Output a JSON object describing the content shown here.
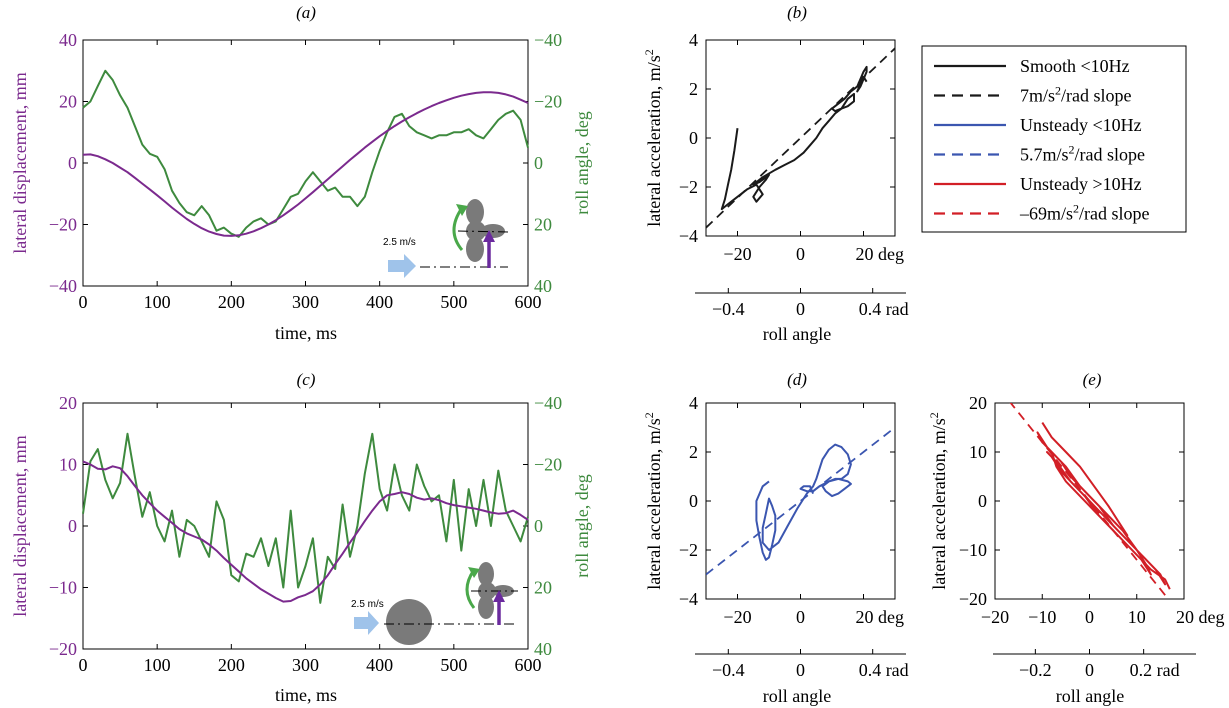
{
  "colors": {
    "displacement": "#7b2a8e",
    "roll": "#3e8a3e",
    "smooth": "#1a1a1a",
    "unsteady_low": "#3b56b0",
    "unsteady_high": "#d21f26",
    "arrow": "#9fc3ea",
    "body": "#7a7a7a"
  },
  "panels": {
    "a": {
      "label": "(a)",
      "inset_speed": "2.5 m/s"
    },
    "b": {
      "label": "(b)"
    },
    "c": {
      "label": "(c)",
      "inset_speed": "2.5 m/s"
    },
    "d": {
      "label": "(d)"
    },
    "e": {
      "label": "(e)"
    }
  },
  "axes": {
    "time_label": "time, ms",
    "disp_label": "lateral displacement, mm",
    "roll_label": "roll angle, deg",
    "accel_label": "lateral acceleration, m/s",
    "accel_sup": "2",
    "roll_angle_label": "roll angle"
  },
  "legend": [
    {
      "label": "Smooth <10Hz",
      "sup": "",
      "suffix": "",
      "style": "solid",
      "color": "#1a1a1a"
    },
    {
      "label": "7m/s",
      "sup": "2",
      "suffix": "/rad slope",
      "style": "dashed",
      "color": "#1a1a1a"
    },
    {
      "label": "Unsteady <10Hz",
      "sup": "",
      "suffix": "",
      "style": "solid",
      "color": "#3b56b0"
    },
    {
      "label": "5.7m/s",
      "sup": "2",
      "suffix": "/rad slope",
      "style": "dashed",
      "color": "#3b56b0"
    },
    {
      "label": "Unsteady >10Hz",
      "sup": "",
      "suffix": "",
      "style": "solid",
      "color": "#d21f26"
    },
    {
      "label": "–69m/s",
      "sup": "2",
      "suffix": "/rad slope",
      "style": "dashed",
      "color": "#d21f26"
    }
  ],
  "chart_data": [
    {
      "id": "a",
      "type": "line",
      "x": [
        0,
        10,
        20,
        30,
        40,
        50,
        60,
        70,
        80,
        90,
        100,
        110,
        120,
        130,
        140,
        150,
        160,
        170,
        180,
        190,
        200,
        210,
        220,
        230,
        240,
        250,
        260,
        270,
        280,
        290,
        300,
        310,
        320,
        330,
        340,
        350,
        360,
        370,
        380,
        390,
        400,
        410,
        420,
        430,
        440,
        450,
        460,
        470,
        480,
        490,
        500,
        510,
        520,
        530,
        540,
        550,
        560,
        570,
        580,
        590,
        600
      ],
      "xlim": [
        0,
        600
      ],
      "xticks": [
        0,
        100,
        200,
        300,
        400,
        500,
        600
      ],
      "left": {
        "ylim": [
          -40,
          40
        ],
        "yticks": [
          -40,
          -20,
          0,
          20,
          40
        ],
        "ylabel": "lateral displacement, mm",
        "values": [
          2.7,
          2.8,
          2.2,
          1.2,
          0,
          -1.5,
          -3,
          -4.8,
          -6.7,
          -8.6,
          -10.5,
          -12.5,
          -14.5,
          -16.4,
          -18.2,
          -19.8,
          -21.2,
          -22.3,
          -23.1,
          -23.6,
          -23.7,
          -23.5,
          -23,
          -22.2,
          -21.2,
          -20,
          -18.6,
          -17,
          -15.3,
          -13.5,
          -11.5,
          -9.5,
          -7.4,
          -5.3,
          -3.2,
          -1.1,
          1,
          3,
          5,
          6.9,
          8.7,
          10.4,
          12,
          13.5,
          14.9,
          16.2,
          17.4,
          18.5,
          19.5,
          20.4,
          21.2,
          21.9,
          22.4,
          22.8,
          23,
          23,
          22.8,
          22.3,
          21.6,
          20.6,
          19.5
        ]
      },
      "right": {
        "ylim": [
          40,
          -40
        ],
        "yticks": [
          -40,
          -20,
          0,
          20,
          40
        ],
        "ylabel": "roll angle, deg",
        "values": [
          -18,
          -20,
          -25,
          -30,
          -27,
          -22,
          -18,
          -12,
          -6,
          -3,
          -2,
          2,
          9,
          13,
          16,
          17,
          14,
          17,
          22,
          21,
          23,
          24,
          21,
          19,
          18,
          20,
          19,
          15,
          11,
          10,
          6,
          3,
          6,
          9,
          8,
          11,
          11,
          14,
          11,
          3,
          -4,
          -10,
          -15,
          -16,
          -12,
          -10,
          -9,
          -8,
          -9,
          -9,
          -10,
          -10,
          -11,
          -9,
          -8,
          -11,
          -14,
          -16,
          -17,
          -14,
          -5
        ]
      }
    },
    {
      "id": "b",
      "type": "line",
      "xlabel": "roll angle, deg",
      "ylabel": "lateral acceleration, m/s²",
      "xlim": [
        -30,
        30
      ],
      "ylim": [
        -4,
        4
      ],
      "xticks": [
        -20,
        0,
        20
      ],
      "yticks": [
        -4,
        -2,
        0,
        2,
        4
      ],
      "rad_ticks": [
        -0.4,
        0,
        0.4
      ],
      "series": [
        {
          "color": "#1a1a1a",
          "style": "solid",
          "x": [
            -20,
            -21,
            -22,
            -23,
            -24,
            -25,
            -24,
            -22,
            -20,
            -17,
            -14,
            -12,
            -14,
            -15,
            -13,
            -11,
            -10,
            -13,
            -15,
            -12,
            -8,
            -5,
            -2,
            1,
            3,
            5,
            7,
            9,
            11,
            13,
            15,
            17,
            17,
            15,
            13,
            11,
            10,
            12,
            14,
            16,
            18,
            19,
            20,
            21,
            21,
            20,
            19,
            18,
            19,
            20,
            21
          ],
          "y": [
            0.4,
            -0.5,
            -1.3,
            -1.9,
            -2.5,
            -2.9,
            -2.8,
            -2.6,
            -2.4,
            -2.1,
            -1.9,
            -2.3,
            -2.6,
            -2.4,
            -2.0,
            -1.7,
            -1.5,
            -1.8,
            -1.9,
            -1.6,
            -1.3,
            -1.1,
            -0.9,
            -0.6,
            -0.3,
            0.0,
            0.4,
            0.7,
            1.0,
            1.2,
            1.3,
            1.5,
            1.8,
            1.6,
            1.2,
            1.1,
            1.2,
            1.4,
            1.6,
            1.9,
            2.1,
            2.4,
            2.7,
            2.9,
            2.7,
            2.4,
            2.1,
            1.9,
            2.2,
            2.5,
            2.3
          ]
        }
      ],
      "fit": {
        "slope_per_deg": 0.122,
        "x": [
          -30,
          30
        ],
        "style": "dashed",
        "color": "#1a1a1a"
      }
    },
    {
      "id": "c",
      "type": "line",
      "x": [
        0,
        10,
        20,
        30,
        40,
        50,
        60,
        70,
        80,
        90,
        100,
        110,
        120,
        130,
        140,
        150,
        160,
        170,
        180,
        190,
        200,
        210,
        220,
        230,
        240,
        250,
        260,
        270,
        280,
        290,
        300,
        310,
        320,
        330,
        340,
        350,
        360,
        370,
        380,
        390,
        400,
        410,
        420,
        430,
        440,
        450,
        460,
        470,
        480,
        490,
        500,
        510,
        520,
        530,
        540,
        550,
        560,
        570,
        580,
        590,
        600
      ],
      "xlim": [
        0,
        600
      ],
      "xticks": [
        0,
        100,
        200,
        300,
        400,
        500,
        600
      ],
      "left": {
        "ylim": [
          -20,
          20
        ],
        "yticks": [
          -20,
          -10,
          0,
          10,
          20
        ],
        "ylabel": "lateral displacement, mm",
        "values": [
          10.5,
          10,
          9.3,
          9.2,
          9.7,
          9.4,
          8.1,
          6.5,
          5,
          3.7,
          2.5,
          1.5,
          0.5,
          -0.5,
          -1.2,
          -1.7,
          -2.2,
          -3,
          -4,
          -5.2,
          -6.3,
          -7.4,
          -8.5,
          -9.4,
          -10.3,
          -11,
          -11.7,
          -12.3,
          -12.2,
          -11.6,
          -11.2,
          -10.6,
          -9.5,
          -8,
          -6.2,
          -4.5,
          -2.7,
          -1,
          0.8,
          2.5,
          4,
          5,
          5.2,
          5.5,
          5.2,
          4.6,
          4.3,
          4.5,
          4.2,
          3.7,
          3.4,
          3.2,
          3.0,
          2.8,
          2.5,
          2.2,
          2.0,
          2.1,
          2.5,
          1.8,
          1.0
        ]
      },
      "right": {
        "ylim": [
          40,
          -40
        ],
        "yticks": [
          -40,
          -20,
          0,
          20,
          40
        ],
        "ylabel": "roll angle, deg",
        "values": [
          -4,
          -21,
          -25,
          -15,
          -9,
          -14,
          -30,
          -16,
          -3,
          -11,
          0,
          5,
          -5,
          10,
          -2,
          0,
          5,
          10,
          -8,
          -2,
          16,
          18,
          9,
          10,
          4,
          13,
          4,
          20,
          -5,
          20,
          13,
          4,
          25,
          10,
          14,
          -7,
          10,
          0,
          -17,
          -30,
          -12,
          -5,
          -20,
          -10,
          -5,
          -20,
          -13,
          -8,
          -10,
          5,
          -15,
          8,
          -12,
          0,
          -15,
          0,
          -18,
          -5,
          0,
          5,
          -3
        ]
      }
    },
    {
      "id": "d",
      "type": "line",
      "xlabel": "roll angle, deg",
      "ylabel": "lateral acceleration, m/s²",
      "xlim": [
        -30,
        30
      ],
      "ylim": [
        -4,
        4
      ],
      "xticks": [
        -20,
        0,
        20
      ],
      "yticks": [
        -4,
        -2,
        0,
        2,
        4
      ],
      "rad_ticks": [
        -0.4,
        0,
        0.4
      ],
      "series": [
        {
          "color": "#3b56b0",
          "style": "solid",
          "x": [
            -10,
            -12,
            -14,
            -14,
            -13,
            -12,
            -11,
            -10,
            -9,
            -8,
            -8,
            -9,
            -10,
            -11,
            -12,
            -12,
            -10,
            -7,
            -4,
            -1,
            2,
            4,
            5,
            6,
            7,
            9,
            11,
            13,
            15,
            16,
            15,
            13,
            11,
            9,
            7,
            8,
            10,
            12,
            14,
            16,
            15,
            12,
            9,
            6,
            4,
            2,
            0,
            1,
            3,
            4
          ],
          "y": [
            0.8,
            0.6,
            0.0,
            -0.8,
            -1.5,
            -2.1,
            -2.4,
            -2.3,
            -1.8,
            -1.2,
            -0.6,
            -0.2,
            0.1,
            -0.5,
            -1.1,
            -1.7,
            -2.0,
            -1.7,
            -1.0,
            -0.3,
            0.3,
            0.6,
            0.9,
            1.3,
            1.7,
            2.1,
            2.3,
            2.2,
            1.9,
            1.5,
            1.1,
            0.9,
            0.9,
            0.8,
            0.6,
            0.4,
            0.2,
            0.3,
            0.5,
            0.7,
            0.8,
            0.9,
            0.8,
            0.6,
            0.4,
            0.4,
            0.5,
            0.6,
            0.6,
            0.3
          ]
        }
      ],
      "fit": {
        "slope_per_deg": 0.1,
        "x": [
          -30,
          30
        ],
        "style": "dashed",
        "color": "#3b56b0"
      }
    },
    {
      "id": "e",
      "type": "line",
      "xlabel": "roll angle, deg",
      "ylabel": "lateral acceleration, m/s²",
      "xlim": [
        -20,
        20
      ],
      "ylim": [
        -20,
        20
      ],
      "xticks": [
        -20,
        -10,
        0,
        10,
        20
      ],
      "yticks": [
        -20,
        -10,
        0,
        10,
        20
      ],
      "rad_ticks": [
        -0.2,
        0,
        0.2
      ],
      "series": [
        {
          "color": "#d21f26",
          "style": "solid",
          "x": [
            -10,
            -8,
            -5,
            -2,
            1,
            4,
            6,
            8,
            6,
            3,
            0,
            -3,
            -6,
            -9,
            -11,
            -10,
            -8,
            -5,
            -2,
            1,
            4,
            7,
            10,
            12,
            13,
            11,
            8,
            5,
            2,
            -1,
            -4,
            -7,
            -9,
            -8,
            -6,
            -3,
            0,
            3,
            6,
            9,
            12,
            15,
            16,
            14,
            11,
            8,
            5,
            2,
            -1,
            -4,
            -6,
            -8,
            -7,
            -5,
            -2,
            1,
            4,
            7,
            10,
            13,
            16,
            17
          ],
          "y": [
            16,
            13,
            10,
            7,
            3,
            -1,
            -4,
            -7,
            -5,
            -2,
            1,
            4,
            8,
            11,
            14,
            12,
            10,
            7,
            3,
            0,
            -3,
            -6,
            -10,
            -13,
            -15,
            -12,
            -9,
            -6,
            -3,
            1,
            4,
            8,
            10,
            9,
            6,
            3,
            0,
            -3,
            -6,
            -9,
            -12,
            -15,
            -17,
            -14,
            -11,
            -8,
            -5,
            -1,
            2,
            5,
            8,
            10,
            7,
            4,
            1,
            -2,
            -5,
            -8,
            -11,
            -14,
            -16,
            -18
          ]
        }
      ],
      "fit": {
        "slope_per_deg": -1.2,
        "x": [
          -17,
          17
        ],
        "style": "dashed",
        "color": "#d21f26"
      }
    }
  ]
}
